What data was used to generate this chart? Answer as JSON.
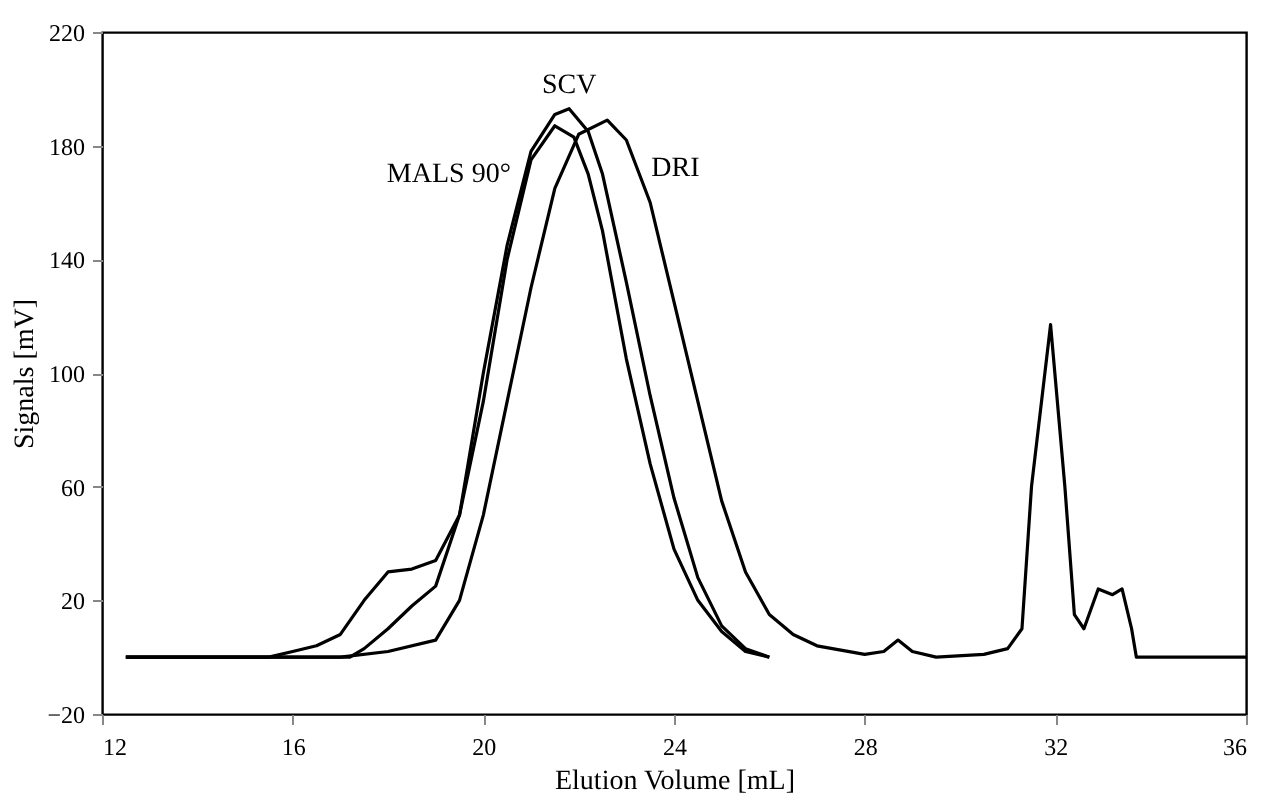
{
  "chart_data": {
    "type": "line",
    "xlabel": "Elution Volume [mL]",
    "ylabel": "Signals [mV]",
    "xlim": [
      12,
      36
    ],
    "xticks": [
      12,
      16,
      20,
      24,
      28,
      32,
      36
    ],
    "ylim": [
      -20,
      220
    ],
    "yticks": [
      -20,
      20,
      60,
      100,
      140,
      180,
      220
    ],
    "grid": false,
    "line_style": "solid",
    "marker": "none",
    "series": [
      {
        "name": "MALS 90°",
        "color": "#000000",
        "x": [
          12.5,
          13,
          15.5,
          16,
          16.5,
          17,
          17.5,
          18,
          18.5,
          19,
          19.5,
          20,
          20.5,
          21,
          21.5,
          21.9,
          22.2,
          22.5,
          23,
          23.5,
          24,
          24.5,
          25,
          25.5,
          26
        ],
        "values": [
          0,
          0,
          0,
          2,
          4,
          8,
          20,
          30,
          31,
          34,
          50,
          90,
          140,
          175,
          187,
          183,
          170,
          150,
          105,
          68,
          38,
          20,
          9,
          2,
          0
        ]
      },
      {
        "name": "SCV",
        "color": "#000000",
        "x": [
          12.5,
          17.2,
          17.5,
          18,
          18.5,
          19,
          19.5,
          20,
          20.5,
          21,
          21.5,
          21.8,
          22.2,
          22.5,
          23,
          23.5,
          24,
          24.5,
          25,
          25.5,
          26
        ],
        "values": [
          0,
          0,
          3,
          10,
          18,
          25,
          50,
          100,
          145,
          178,
          191,
          193,
          185,
          170,
          132,
          92,
          56,
          28,
          11,
          3,
          0
        ]
      },
      {
        "name": "DRI",
        "color": "#000000",
        "x": [
          12.5,
          17,
          18,
          19,
          19.5,
          20,
          20.5,
          21,
          21.5,
          22,
          22.6,
          23,
          23.5,
          24,
          24.5,
          25,
          25.5,
          26,
          26.5,
          27,
          28,
          28.4,
          28.7,
          29,
          29.5,
          30.5,
          31,
          31.3,
          31.5,
          31.9,
          32.2,
          32.4,
          32.6,
          32.9,
          33.2,
          33.4,
          33.6,
          33.7,
          36
        ],
        "values": [
          0,
          0,
          2,
          6,
          20,
          50,
          90,
          130,
          165,
          184,
          189,
          182,
          160,
          125,
          90,
          55,
          30,
          15,
          8,
          4,
          1,
          2,
          6,
          2,
          0,
          1,
          3,
          10,
          60,
          117,
          60,
          15,
          10,
          24,
          22,
          24,
          10,
          0,
          0
        ]
      }
    ]
  }
}
